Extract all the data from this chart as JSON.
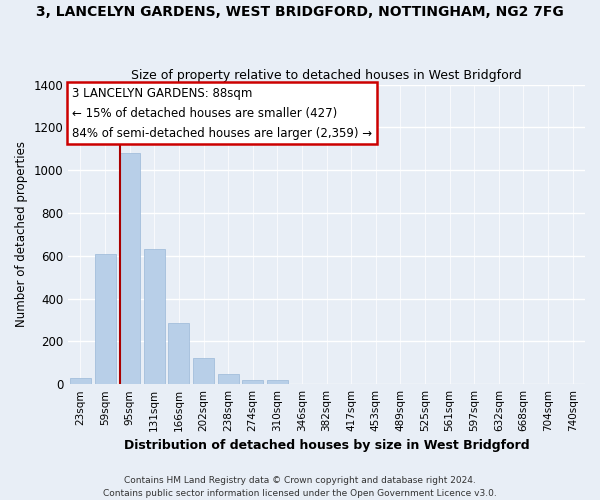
{
  "title": "3, LANCELYN GARDENS, WEST BRIDGFORD, NOTTINGHAM, NG2 7FG",
  "subtitle": "Size of property relative to detached houses in West Bridgford",
  "xlabel": "Distribution of detached houses by size in West Bridgford",
  "ylabel": "Number of detached properties",
  "bar_labels": [
    "23sqm",
    "59sqm",
    "95sqm",
    "131sqm",
    "166sqm",
    "202sqm",
    "238sqm",
    "274sqm",
    "310sqm",
    "346sqm",
    "382sqm",
    "417sqm",
    "453sqm",
    "489sqm",
    "525sqm",
    "561sqm",
    "597sqm",
    "632sqm",
    "668sqm",
    "704sqm",
    "740sqm"
  ],
  "bar_values": [
    30,
    610,
    1080,
    630,
    285,
    120,
    48,
    20,
    18,
    0,
    0,
    0,
    0,
    0,
    0,
    0,
    0,
    0,
    0,
    0,
    0
  ],
  "bar_color": "#b8cfe8",
  "bar_edge_color": "#9ab8d8",
  "vline_x_pos": 1.6,
  "vline_color": "#aa0000",
  "ylim": [
    0,
    1400
  ],
  "yticks": [
    0,
    200,
    400,
    600,
    800,
    1000,
    1200,
    1400
  ],
  "annotation_title": "3 LANCELYN GARDENS: 88sqm",
  "annotation_line1": "← 15% of detached houses are smaller (427)",
  "annotation_line2": "84% of semi-detached houses are larger (2,359) →",
  "annotation_box_color": "#ffffff",
  "annotation_box_edge": "#cc0000",
  "footer1": "Contains HM Land Registry data © Crown copyright and database right 2024.",
  "footer2": "Contains public sector information licensed under the Open Government Licence v3.0.",
  "bg_color": "#e8eef6",
  "grid_color": "#ffffff",
  "title_fontsize": 10,
  "subtitle_fontsize": 9
}
